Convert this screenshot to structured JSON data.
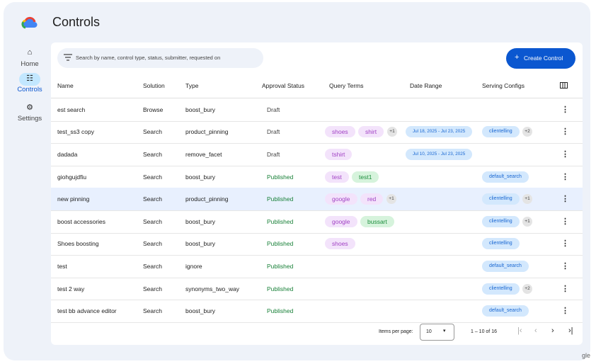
{
  "header": {
    "title": "Controls"
  },
  "nav": [
    {
      "label": "Home"
    },
    {
      "label": "Controls"
    },
    {
      "label": "Settings"
    }
  ],
  "search": {
    "placeholder": "Search by name, control type, status, submitter, requested on"
  },
  "create_button": {
    "label": "Create Control"
  },
  "table": {
    "columns": [
      "Name",
      "Solution",
      "Type",
      "Approval Status",
      "Query Terms",
      "Date Range",
      "Serving Configs"
    ],
    "rows": [
      {
        "name": "est search",
        "solution": "Browse",
        "type": "boost_bury",
        "status": "Draft",
        "query_terms": [],
        "date_range": null,
        "serving_configs": []
      },
      {
        "name": "test_ss3 copy",
        "solution": "Search",
        "type": "product_pinning",
        "status": "Draft",
        "query_terms": [
          {
            "label": "shoes",
            "color": "purple"
          },
          {
            "label": "shirt",
            "color": "purple"
          }
        ],
        "query_more": "+1",
        "date_range": "Jul 18, 2025 - Jul 23, 2025",
        "serving_configs": [
          "clientelling"
        ],
        "serving_more": "+2"
      },
      {
        "name": "dadada",
        "solution": "Search",
        "type": "remove_facet",
        "status": "Draft",
        "query_terms": [
          {
            "label": "tshirt",
            "color": "purple"
          }
        ],
        "date_range": "Jul 10, 2025 - Jul 23, 2025",
        "serving_configs": []
      },
      {
        "name": "giohgujdfiu",
        "solution": "Search",
        "type": "boost_bury",
        "status": "Published",
        "query_terms": [
          {
            "label": "test",
            "color": "purple"
          },
          {
            "label": "test1",
            "color": "green"
          }
        ],
        "date_range": null,
        "serving_configs": [
          "default_search"
        ]
      },
      {
        "name": "new pinning",
        "solution": "Search",
        "type": "product_pinning",
        "status": "Published",
        "query_terms": [
          {
            "label": "google",
            "color": "purple"
          },
          {
            "label": "red",
            "color": "purple"
          }
        ],
        "query_more": "+1",
        "date_range": null,
        "serving_configs": [
          "clientelling"
        ],
        "serving_more": "+1",
        "highlighted": true
      },
      {
        "name": "boost accessories",
        "solution": "Search",
        "type": "boost_bury",
        "status": "Published",
        "query_terms": [
          {
            "label": "google",
            "color": "purple"
          },
          {
            "label": "bussart",
            "color": "green"
          }
        ],
        "date_range": null,
        "serving_configs": [
          "clientelling"
        ],
        "serving_more": "+1"
      },
      {
        "name": "Shoes boosting",
        "solution": "Search",
        "type": "boost_bury",
        "status": "Published",
        "query_terms": [
          {
            "label": "shoes",
            "color": "purple"
          }
        ],
        "date_range": null,
        "serving_configs": [
          "clientelling"
        ]
      },
      {
        "name": "test",
        "solution": "Search",
        "type": "ignore",
        "status": "Published",
        "query_terms": [],
        "date_range": null,
        "serving_configs": [
          "default_search"
        ]
      },
      {
        "name": "test 2 way",
        "solution": "Search",
        "type": "synonyms_two_way",
        "status": "Published",
        "query_terms": [],
        "date_range": null,
        "serving_configs": [
          "clientelling"
        ],
        "serving_more": "+2"
      },
      {
        "name": "test bb advance editor",
        "solution": "Search",
        "type": "boost_bury",
        "status": "Published",
        "query_terms": [],
        "date_range": null,
        "serving_configs": [
          "default_search"
        ]
      }
    ]
  },
  "pagination": {
    "items_per_page_label": "Items per page:",
    "items_per_page": "10",
    "range": "1 – 10 of 16"
  },
  "footer": {
    "fragment": "gle"
  }
}
